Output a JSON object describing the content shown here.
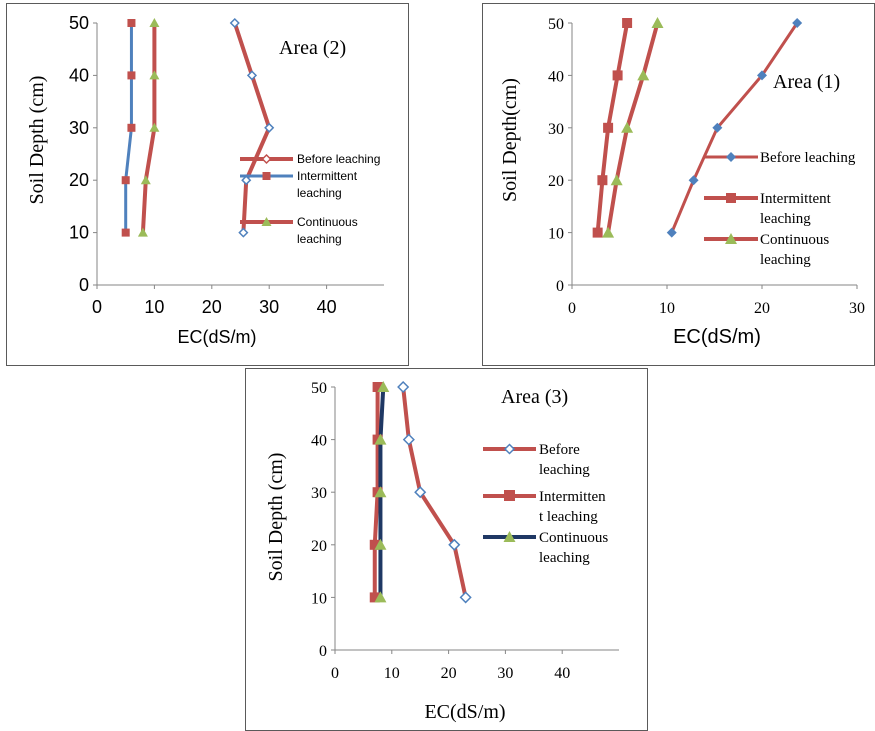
{
  "chart_data": [
    {
      "type": "line",
      "title": "Area (2)",
      "xlabel": "EC(dS/m)",
      "ylabel": "Soil Depth (cm)",
      "xlim": [
        0,
        50
      ],
      "ylim": [
        0,
        50
      ],
      "xticks": [
        "0",
        "10",
        "20",
        "30",
        "40"
      ],
      "yticks": [
        "0",
        "10",
        "20",
        "30",
        "40",
        "50"
      ],
      "y": [
        10,
        20,
        30,
        40,
        50
      ],
      "grid": false,
      "legend_position": "right",
      "series": [
        {
          "name": "Before leaching",
          "x": [
            25.5,
            26,
            30,
            27,
            24
          ],
          "color": "#c0504d",
          "marker": "diamond-open"
        },
        {
          "name": "Intermittent leaching",
          "x": [
            5,
            5,
            6,
            6,
            6
          ],
          "color": "#4f81bd",
          "marker": "square",
          "marker_color": "#c0504d"
        },
        {
          "name": "Continuous leaching",
          "x": [
            8,
            8.5,
            10,
            10,
            10
          ],
          "color": "#c0504d",
          "marker": "triangle",
          "marker_color": "#9bbb59"
        }
      ]
    },
    {
      "type": "line",
      "title": "Area (1)",
      "xlabel": "EC(dS/m)",
      "ylabel": "Soil Depth(cm)",
      "xlim": [
        0,
        30
      ],
      "ylim": [
        0,
        50
      ],
      "xticks": [
        "0",
        "10",
        "20",
        "30"
      ],
      "yticks": [
        "0",
        "10",
        "20",
        "30",
        "40",
        "50"
      ],
      "y": [
        10,
        20,
        30,
        40,
        50
      ],
      "grid": false,
      "legend_position": "right",
      "series": [
        {
          "name": "Before leaching",
          "x": [
            10.5,
            12.8,
            15.3,
            20,
            23.7
          ],
          "color": "#c0504d",
          "marker": "diamond",
          "marker_color": "#4f81bd"
        },
        {
          "name": "Intermittent leaching",
          "x": [
            2.7,
            3.2,
            3.8,
            4.8,
            5.8
          ],
          "color": "#c0504d",
          "marker": "square"
        },
        {
          "name": "Continuous leaching",
          "x": [
            3.8,
            4.7,
            5.8,
            7.5,
            9
          ],
          "color": "#c0504d",
          "marker": "triangle",
          "marker_color": "#9bbb59"
        }
      ]
    },
    {
      "type": "line",
      "title": "Area (3)",
      "xlabel": "EC(dS/m)",
      "ylabel": "Soil Depth (cm)",
      "xlim": [
        0,
        50
      ],
      "ylim": [
        0,
        50
      ],
      "xticks": [
        "0",
        "10",
        "20",
        "30",
        "40"
      ],
      "yticks": [
        "0",
        "10",
        "20",
        "30",
        "40",
        "50"
      ],
      "y": [
        10,
        20,
        30,
        40,
        50
      ],
      "grid": false,
      "legend_position": "right",
      "series": [
        {
          "name": "Before leaching",
          "x": [
            23,
            21,
            15,
            13,
            12
          ],
          "color": "#c0504d",
          "marker": "diamond-open"
        },
        {
          "name": "Intermitten t leaching",
          "x": [
            7,
            7,
            7.5,
            7.5,
            7.5
          ],
          "color": "#c0504d",
          "marker": "square"
        },
        {
          "name": "Continuous leaching",
          "x": [
            8,
            8,
            8,
            8,
            8.5
          ],
          "color": "#1f3864",
          "marker": "triangle",
          "marker_color": "#9bbb59"
        }
      ]
    }
  ]
}
